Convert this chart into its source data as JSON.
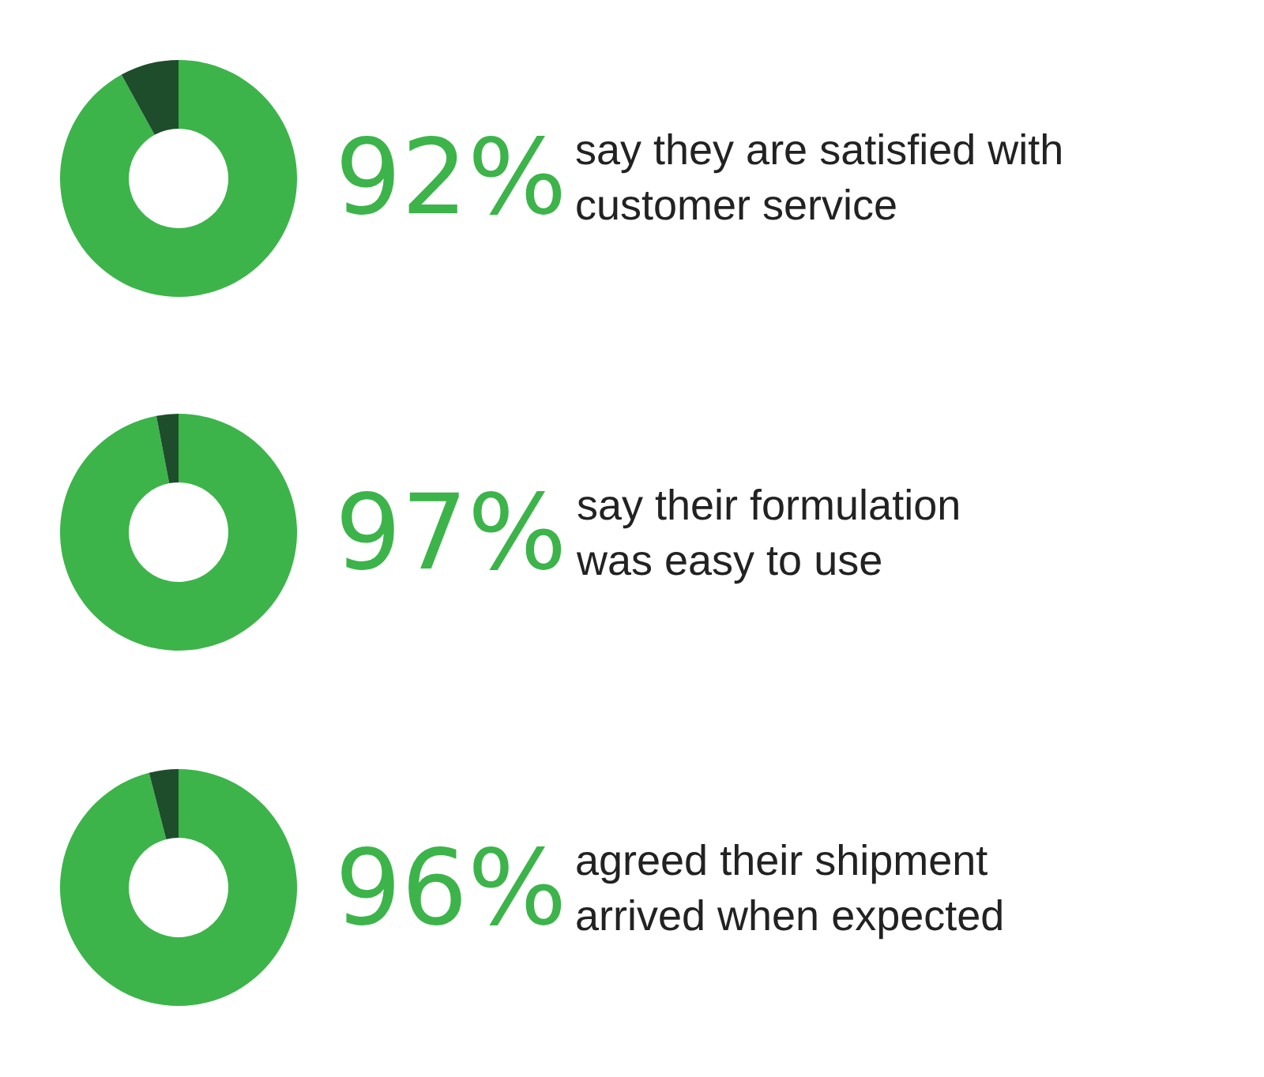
{
  "chart_data": [
    {
      "type": "donut",
      "categories": [
        null,
        null
      ],
      "values": [
        92,
        8
      ],
      "colors": [
        "#3cb44a",
        "#1e4d2b"
      ],
      "value_labels": [
        "92%",
        null
      ],
      "annotations": [
        "say they are satisfied with\ncustomer service"
      ]
    },
    {
      "type": "donut",
      "categories": [
        null,
        null
      ],
      "values": [
        97,
        3
      ],
      "colors": [
        "#3cb44a",
        "#1e4d2b"
      ],
      "value_labels": [
        "97%",
        null
      ],
      "annotations": [
        "say their formulation\nwas easy to use"
      ]
    },
    {
      "type": "donut",
      "categories": [
        null,
        null
      ],
      "values": [
        96,
        4
      ],
      "colors": [
        "#3cb44a",
        "#1e4d2b"
      ],
      "value_labels": [
        "96%",
        null
      ],
      "annotations": [
        "agreed their shipment\narrived when expected"
      ]
    }
  ]
}
